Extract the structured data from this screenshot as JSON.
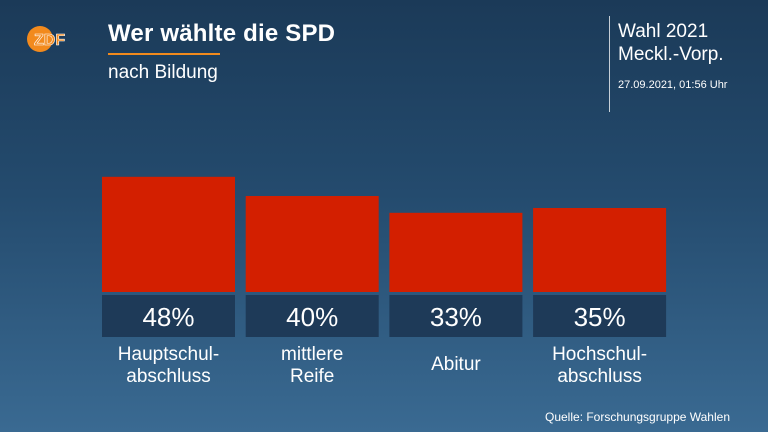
{
  "header": {
    "title": "Wer wählte die SPD",
    "subtitle": "nach Bildung",
    "election_title": "Wahl 2021",
    "election_region": "Meckl.-Vorp.",
    "timestamp": "27.09.2021, 01:56 Uhr"
  },
  "logo": {
    "text": "ZDF",
    "icon": "zdf-logo-icon",
    "color": "#f28a1d"
  },
  "colors": {
    "bar": "#d31f00",
    "label_box": "#1e3a58",
    "accent": "#f28a1d"
  },
  "chart_data": {
    "type": "bar",
    "categories": [
      "Hauptschul-\nabschluss",
      "mittlere\nReife",
      "Abitur",
      "Hochschul-\nabschluss"
    ],
    "values": [
      48,
      40,
      33,
      35
    ],
    "value_labels": [
      "48%",
      "40%",
      "33%",
      "35%"
    ],
    "title": "Wer wählte die SPD",
    "subtitle": "nach Bildung",
    "unit": "%",
    "grid": false,
    "legend": "none"
  },
  "footer": {
    "source": "Quelle: Forschungsgruppe Wahlen"
  }
}
